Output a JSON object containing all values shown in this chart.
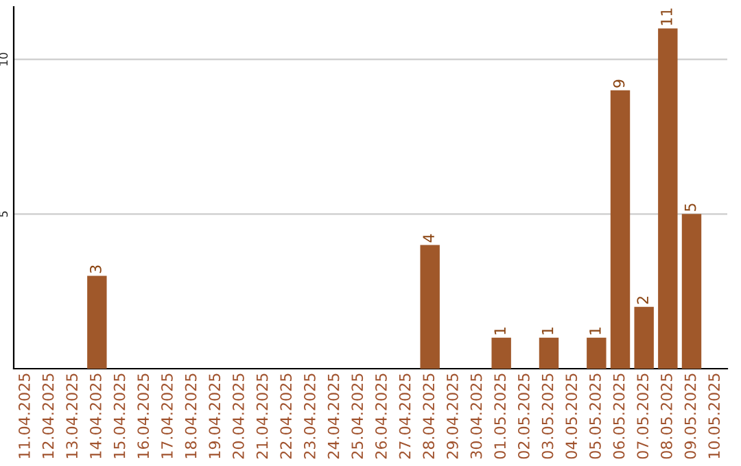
{
  "chart_data": {
    "type": "bar",
    "categories": [
      "11.04.2025",
      "12.04.2025",
      "13.04.2025",
      "14.04.2025",
      "15.04.2025",
      "16.04.2025",
      "17.04.2025",
      "18.04.2025",
      "19.04.2025",
      "20.04.2025",
      "21.04.2025",
      "22.04.2025",
      "23.04.2025",
      "24.04.2025",
      "25.04.2025",
      "26.04.2025",
      "27.04.2025",
      "28.04.2025",
      "29.04.2025",
      "30.04.2025",
      "01.05.2025",
      "02.05.2025",
      "03.05.2025",
      "04.05.2025",
      "05.05.2025",
      "06.05.2025",
      "07.05.2025",
      "08.05.2025",
      "09.05.2025",
      "10.05.2025"
    ],
    "values": [
      0,
      0,
      0,
      3,
      0,
      0,
      0,
      0,
      0,
      0,
      0,
      0,
      0,
      0,
      0,
      0,
      0,
      4,
      0,
      0,
      1,
      0,
      1,
      0,
      1,
      9,
      2,
      11,
      5,
      0
    ],
    "value_labels": [
      null,
      null,
      null,
      "3",
      null,
      null,
      null,
      null,
      null,
      null,
      null,
      null,
      null,
      null,
      null,
      null,
      null,
      "4",
      null,
      null,
      "1",
      null,
      "1",
      null,
      "1",
      "9",
      "2",
      "11",
      "5",
      null
    ],
    "color": "#a0582a",
    "ylim": [
      0,
      11.7
    ],
    "yticks": [
      5,
      10
    ],
    "grid": "y"
  }
}
